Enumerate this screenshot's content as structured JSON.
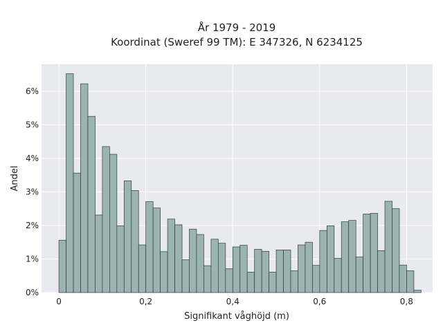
{
  "chart_data": {
    "type": "bar",
    "title": "År 1979 - 2019",
    "subtitle": "Koordinat (Sweref 99 TM): E 347326, N 6234125",
    "xlabel": "Signifikant våghöjd (m)",
    "ylabel": "Andel",
    "xlim": [
      -0.04,
      0.86
    ],
    "ylim": [
      0,
      6.8
    ],
    "x_ticks": [
      0,
      0.2,
      0.4,
      0.6,
      0.8
    ],
    "x_tick_labels": [
      "0",
      "0,2",
      "0,4",
      "0,6",
      "0,8"
    ],
    "y_ticks": [
      0,
      1,
      2,
      3,
      4,
      5,
      6
    ],
    "y_tick_labels": [
      "0%",
      "1%",
      "2%",
      "3%",
      "4%",
      "5%",
      "6%"
    ],
    "bin_start": 0,
    "bin_width": 0.01667,
    "values": [
      1.56,
      6.52,
      3.56,
      6.22,
      5.25,
      2.31,
      4.35,
      4.12,
      1.99,
      3.33,
      3.04,
      1.42,
      2.71,
      2.52,
      1.22,
      2.19,
      2.02,
      0.98,
      1.89,
      1.73,
      0.8,
      1.59,
      1.47,
      0.71,
      1.36,
      1.41,
      0.61,
      1.29,
      1.23,
      0.61,
      1.27,
      1.27,
      0.65,
      1.42,
      1.5,
      0.81,
      1.85,
      1.99,
      1.02,
      2.11,
      2.15,
      1.06,
      2.34,
      2.36,
      1.25,
      2.72,
      2.5,
      0.82,
      0.65,
      0.07
    ],
    "grid": true,
    "colors": {
      "plot_bg": "#e9e9f1",
      "grid": "#ffffff",
      "bar_fill": "#9bb3b3",
      "bar_stroke": "#2e3b3b"
    }
  }
}
